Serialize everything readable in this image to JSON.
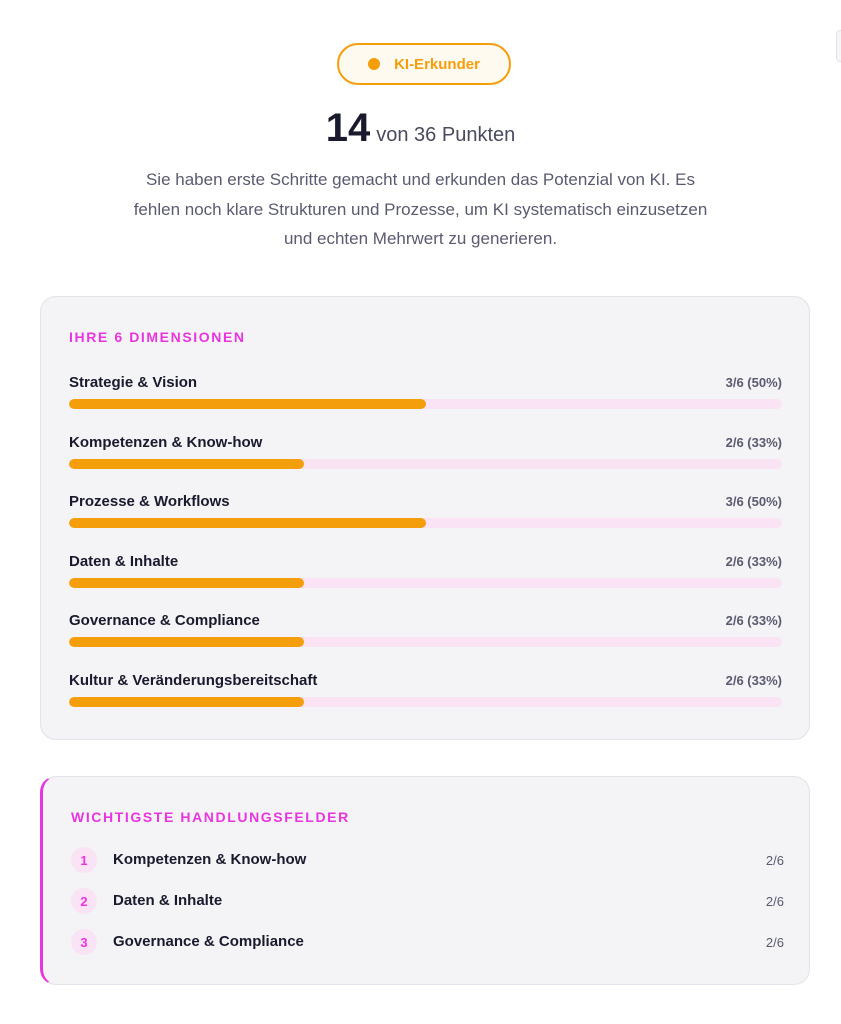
{
  "badge": {
    "label": "KI-Erkunder",
    "color": "#f59e0b"
  },
  "score": {
    "value": "14",
    "suffix": "von 36 Punkten",
    "points": 14,
    "max": 36
  },
  "description": "Sie haben erste Schritte gemacht und erkunden das Potenzial von KI. Es fehlen noch klare Strukturen und Prozesse, um KI systematisch einzusetzen und echten Mehrwert zu generieren.",
  "dimensions": {
    "title": "Ihre 6 Dimensionen",
    "items": [
      {
        "name": "Strategie & Vision",
        "score": "3/6 (50%)",
        "fraction": 0.5
      },
      {
        "name": "Kompetenzen & Know-how",
        "score": "2/6 (33%)",
        "fraction": 0.33
      },
      {
        "name": "Prozesse & Workflows",
        "score": "3/6 (50%)",
        "fraction": 0.5
      },
      {
        "name": "Daten & Inhalte",
        "score": "2/6 (33%)",
        "fraction": 0.33
      },
      {
        "name": "Governance & Compliance",
        "score": "2/6 (33%)",
        "fraction": 0.33
      },
      {
        "name": "Kultur & Veränderungsbereitschaft",
        "score": "2/6 (33%)",
        "fraction": 0.33
      }
    ]
  },
  "fields": {
    "title": "Wichtigste Handlungsfelder",
    "items": [
      {
        "rank": "1",
        "name": "Kompetenzen & Know-how",
        "score": "2/6"
      },
      {
        "rank": "2",
        "name": "Daten & Inhalte",
        "score": "2/6"
      },
      {
        "rank": "3",
        "name": "Governance & Compliance",
        "score": "2/6"
      }
    ]
  },
  "colors": {
    "accent": "#e935e0",
    "bar_fill": "#f59e0b",
    "bar_track": "#fbe3f6"
  }
}
